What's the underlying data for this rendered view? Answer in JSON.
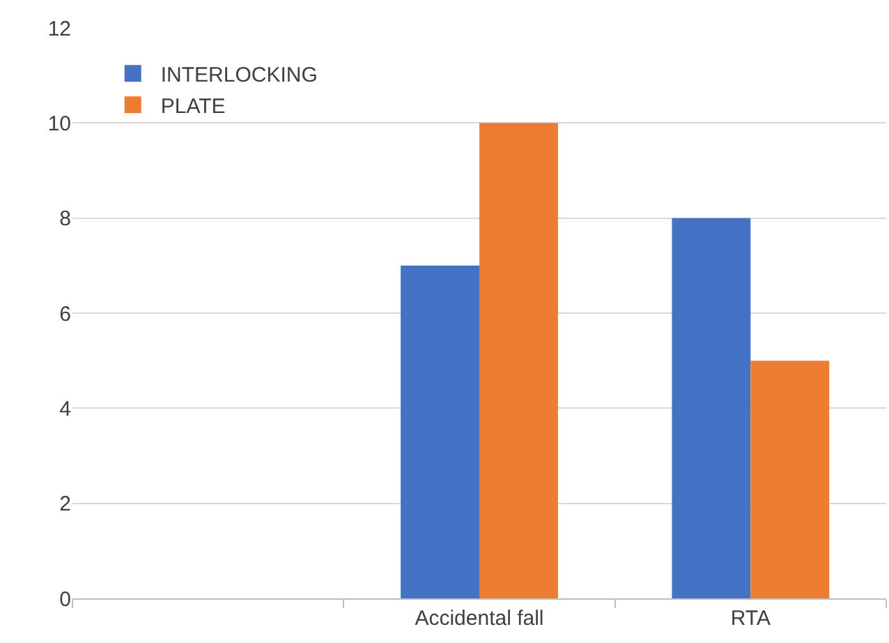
{
  "chart_data": {
    "type": "bar",
    "categories": [
      null,
      "Accidental fall",
      "RTA"
    ],
    "series": [
      {
        "name": "INTERLOCKING",
        "color": "#4472c4",
        "values": [
          null,
          7,
          8
        ]
      },
      {
        "name": "PLATE",
        "color": "#ed7d31",
        "values": [
          null,
          10,
          5
        ]
      }
    ],
    "ylim": [
      0,
      12
    ],
    "yticks": [
      0,
      2,
      4,
      6,
      8,
      10,
      12
    ],
    "grid": "y",
    "legend": "top left"
  }
}
